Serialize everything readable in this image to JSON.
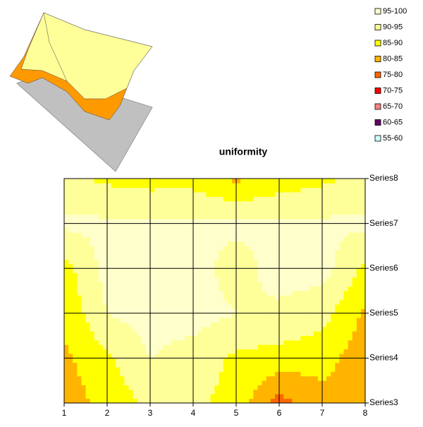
{
  "chart_data": {
    "type": "contour",
    "title": "uniformity",
    "x": [
      1,
      2,
      3,
      4,
      5,
      6,
      7,
      8
    ],
    "series": [
      {
        "name": "Series3",
        "values": [
          82,
          87,
          91,
          91,
          88,
          78,
          83,
          82
        ]
      },
      {
        "name": "Series4",
        "values": [
          84,
          89,
          95,
          93,
          89,
          88,
          87,
          82
        ]
      },
      {
        "name": "Series5",
        "values": [
          86,
          95,
          97,
          97,
          95,
          94,
          92,
          84
        ]
      },
      {
        "name": "Series6",
        "values": [
          88,
          97,
          98,
          97,
          93,
          97,
          97,
          89
        ]
      },
      {
        "name": "Series7",
        "values": [
          96,
          96,
          96,
          96,
          96,
          96,
          96,
          96
        ]
      },
      {
        "name": "Series8",
        "values": [
          91,
          89,
          88,
          88,
          84,
          87,
          89,
          91
        ]
      }
    ],
    "bands": [
      {
        "label": "95-100",
        "color": "#ffffcc"
      },
      {
        "label": "90-95",
        "color": "#ffff99"
      },
      {
        "label": "85-90",
        "color": "#ffff00"
      },
      {
        "label": "80-85",
        "color": "#ffb400"
      },
      {
        "label": "75-80",
        "color": "#ff6600"
      },
      {
        "label": "70-75",
        "color": "#ff0000"
      },
      {
        "label": "65-70",
        "color": "#ff8080"
      },
      {
        "label": "60-65",
        "color": "#660066"
      },
      {
        "label": "55-60",
        "color": "#ccffff"
      }
    ],
    "grid": true
  }
}
